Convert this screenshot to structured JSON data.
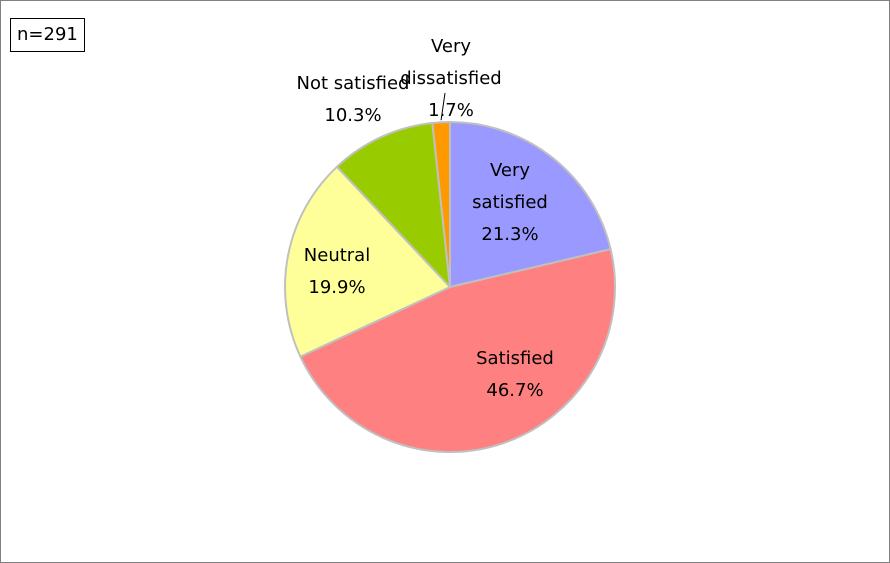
{
  "sample_label": "n=291",
  "chart_data": {
    "type": "pie",
    "title": "",
    "categories": [
      "Very satisfied",
      "Satisfied",
      "Neutral",
      "Not satisfied",
      "Very dissatisfied"
    ],
    "values": [
      21.3,
      46.7,
      19.9,
      10.3,
      1.7
    ],
    "value_unit": "%",
    "colors": [
      "#9999FF",
      "#FF8080",
      "#FFFF99",
      "#99CC00",
      "#FF9900"
    ],
    "data_labels": [
      {
        "lines": [
          "Very",
          "satisfied",
          "21.3%"
        ]
      },
      {
        "lines": [
          "Satisfied",
          "46.7%"
        ]
      },
      {
        "lines": [
          "Neutral",
          "19.9%"
        ]
      },
      {
        "lines": [
          "Not satisfied",
          "10.3%"
        ]
      },
      {
        "lines": [
          "Very",
          "dissatisfied",
          "1.7%"
        ]
      }
    ],
    "start_angle": "12 o'clock",
    "direction": "clockwise",
    "legend": "none"
  }
}
